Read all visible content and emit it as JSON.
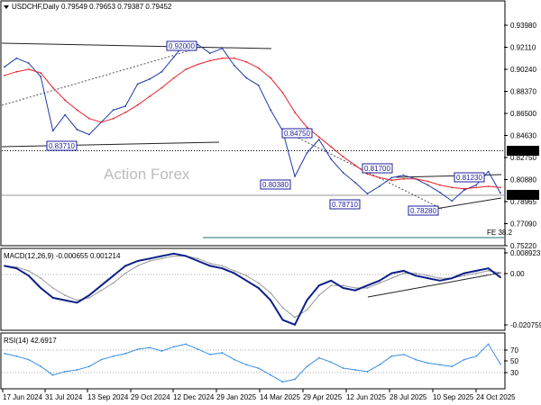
{
  "header": {
    "symbol": "USDCHF,Daily",
    "quote": "0.79549 0.79653 0.79387 0.79452"
  },
  "watermark": "Action Forex",
  "colors": {
    "price": "#1e3aa8",
    "ma": "#e8202a",
    "trend": "#222222",
    "macd": "#0b1f8a",
    "signal": "#9a9a9a",
    "rsi": "#3a8ee6",
    "label_border": "#1c1c9c",
    "fe": "#1f6f6f"
  },
  "chart_data": [
    {
      "type": "line",
      "panel": "price",
      "title": "USDCHF,Daily",
      "ylim": [
        0.7525,
        0.9498
      ],
      "y_ticks": [
        "0.93980",
        "0.92110",
        "0.90240",
        "0.88370",
        "0.86500",
        "0.84630",
        "0.82750",
        "0.80880",
        "0.78965",
        "0.77090",
        "0.75220"
      ],
      "x_ticks": [
        "17 Jun 2024",
        "31 Jul 2024",
        "13 Sep 2024",
        "29 Oct 2024",
        "12 Dec 2024",
        "29 Jan 2025",
        "14 Mar 2025",
        "29 Apr 2025",
        "12 Jun 2025",
        "28 Jul 2025",
        "10 Sep 2025",
        "24 Oct 2025"
      ],
      "x": [
        "17 Jun 2024",
        "1 Jul 2024",
        "15 Jul 2024",
        "31 Jul 2024",
        "5 Aug 2024",
        "15 Aug 2024",
        "29 Aug 2024",
        "13 Sep 2024",
        "1 Oct 2024",
        "15 Oct 2024",
        "29 Oct 2024",
        "12 Nov 2024",
        "26 Nov 2024",
        "12 Dec 2024",
        "26 Dec 2024",
        "10 Jan 2025",
        "20 Jan 2025",
        "29 Jan 2025",
        "12 Feb 2025",
        "26 Feb 2025",
        "5 Mar 2025",
        "14 Mar 2025",
        "2 Apr 2025",
        "11 Apr 2025",
        "21 Apr 2025",
        "29 Apr 2025",
        "14 May 2025",
        "28 May 2025",
        "12 Jun 2025",
        "26 Jun 2025",
        "7 Jul 2025",
        "17 Jul 2025",
        "28 Jul 2025",
        "1 Aug 2025",
        "15 Aug 2025",
        "29 Aug 2025",
        "10 Sep 2025",
        "17 Sep 2025",
        "1 Oct 2025",
        "15 Oct 2025",
        "24 Oct 2025",
        "5 Nov 2025"
      ],
      "series": [
        {
          "values": [
            0.897,
            0.904,
            0.9,
            0.889,
            0.845,
            0.858,
            0.846,
            0.842,
            0.852,
            0.862,
            0.865,
            0.883,
            0.887,
            0.893,
            0.905,
            0.917,
            0.915,
            0.908,
            0.912,
            0.898,
            0.888,
            0.882,
            0.862,
            0.845,
            0.808,
            0.827,
            0.838,
            0.822,
            0.811,
            0.803,
            0.794,
            0.8,
            0.807,
            0.809,
            0.806,
            0.801,
            0.795,
            0.788,
            0.797,
            0.801,
            0.812,
            0.7945
          ]
        },
        {
          "values": [
            0.89,
            0.893,
            0.895,
            0.892,
            0.88,
            0.87,
            0.862,
            0.855,
            0.852,
            0.855,
            0.86,
            0.866,
            0.873,
            0.88,
            0.888,
            0.895,
            0.899,
            0.902,
            0.904,
            0.904,
            0.901,
            0.896,
            0.888,
            0.876,
            0.86,
            0.848,
            0.84,
            0.832,
            0.824,
            0.817,
            0.81,
            0.807,
            0.805,
            0.806,
            0.806,
            0.804,
            0.801,
            0.799,
            0.798,
            0.799,
            0.8,
            0.799
          ]
        }
      ],
      "last_price": "0.79452",
      "horizontal_level": "0.83320",
      "fe_label": "FE 38.2",
      "annotations": [
        "0.92000",
        "0.83710",
        "0.84750",
        "0.80380",
        "0.81700",
        "0.78710",
        "0.81230",
        "0.78280"
      ]
    },
    {
      "type": "line",
      "panel": "macd",
      "title": "MACD(12,26,9) -0.000655 0.001214",
      "ylim": [
        -0.0219,
        0.0104
      ],
      "y_ticks": [
        "0.008923",
        "0.00",
        "-0.020759"
      ],
      "series": [
        {
          "values": [
            0.004,
            0.003,
            0.0,
            -0.005,
            -0.009,
            -0.01,
            -0.011,
            -0.008,
            -0.004,
            0.0,
            0.004,
            0.006,
            0.007,
            0.008,
            0.009,
            0.008,
            0.006,
            0.004,
            0.003,
            0.001,
            -0.002,
            -0.005,
            -0.01,
            -0.018,
            -0.02,
            -0.01,
            -0.004,
            -0.002,
            -0.005,
            -0.006,
            -0.004,
            -0.002,
            0.001,
            0.002,
            0.0,
            -0.001,
            -0.002,
            -0.001,
            0.001,
            0.002,
            0.003,
            -0.000655
          ]
        },
        {
          "values": [
            0.004,
            0.0035,
            0.002,
            -0.001,
            -0.005,
            -0.008,
            -0.01,
            -0.009,
            -0.006,
            -0.003,
            0.001,
            0.004,
            0.006,
            0.007,
            0.008,
            0.008,
            0.007,
            0.005,
            0.004,
            0.002,
            0.0,
            -0.003,
            -0.007,
            -0.013,
            -0.017,
            -0.014,
            -0.008,
            -0.004,
            -0.004,
            -0.005,
            -0.005,
            -0.003,
            -0.001,
            0.001,
            0.001,
            0.0,
            -0.001,
            -0.001,
            0.0,
            0.001,
            0.002,
            0.001214
          ]
        }
      ]
    },
    {
      "type": "line",
      "panel": "rsi",
      "title": "RSI(14) 42.6917",
      "ylim": [
        15,
        78
      ],
      "y_ticks": [
        "70",
        "50",
        "30"
      ],
      "series": [
        {
          "values": [
            55,
            52,
            48,
            40,
            30,
            34,
            36,
            40,
            48,
            52,
            55,
            60,
            62,
            58,
            63,
            66,
            60,
            54,
            56,
            48,
            42,
            38,
            30,
            22,
            25,
            40,
            50,
            45,
            38,
            36,
            34,
            42,
            52,
            54,
            48,
            44,
            42,
            40,
            48,
            52,
            66,
            42.6917
          ]
        }
      ]
    }
  ]
}
